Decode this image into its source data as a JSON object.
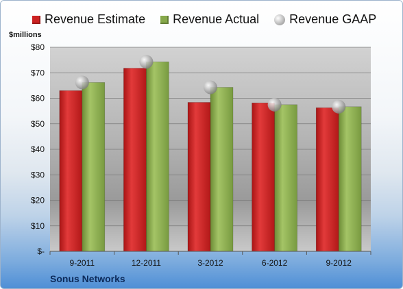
{
  "chart_data": {
    "type": "bar",
    "categories": [
      "9-2011",
      "12-2011",
      "3-2012",
      "6-2012",
      "9-2012"
    ],
    "series": [
      {
        "name": "Revenue Estimate",
        "values": [
          63,
          71.8,
          58.4,
          58.2,
          56.3
        ],
        "color": "#cc2222",
        "kind": "bar"
      },
      {
        "name": "Revenue Actual",
        "values": [
          66.2,
          74.3,
          64.3,
          57.5,
          56.7
        ],
        "color": "#86a84a",
        "kind": "bar"
      },
      {
        "name": "Revenue GAAP",
        "values": [
          66.2,
          74.3,
          64.3,
          57.5,
          56.7
        ],
        "color": "#b8b8b8",
        "kind": "marker"
      }
    ],
    "ylabel": "$millions",
    "ylim": [
      0,
      80
    ],
    "yticks": [
      0,
      10,
      20,
      30,
      40,
      50,
      60,
      70,
      80
    ],
    "ytick_labels": [
      "$-",
      "$10",
      "$20",
      "$30",
      "$40",
      "$50",
      "$60",
      "$70",
      "$80"
    ],
    "grid": true,
    "legend": "top"
  },
  "footer": {
    "company": "Sonus Networks"
  }
}
